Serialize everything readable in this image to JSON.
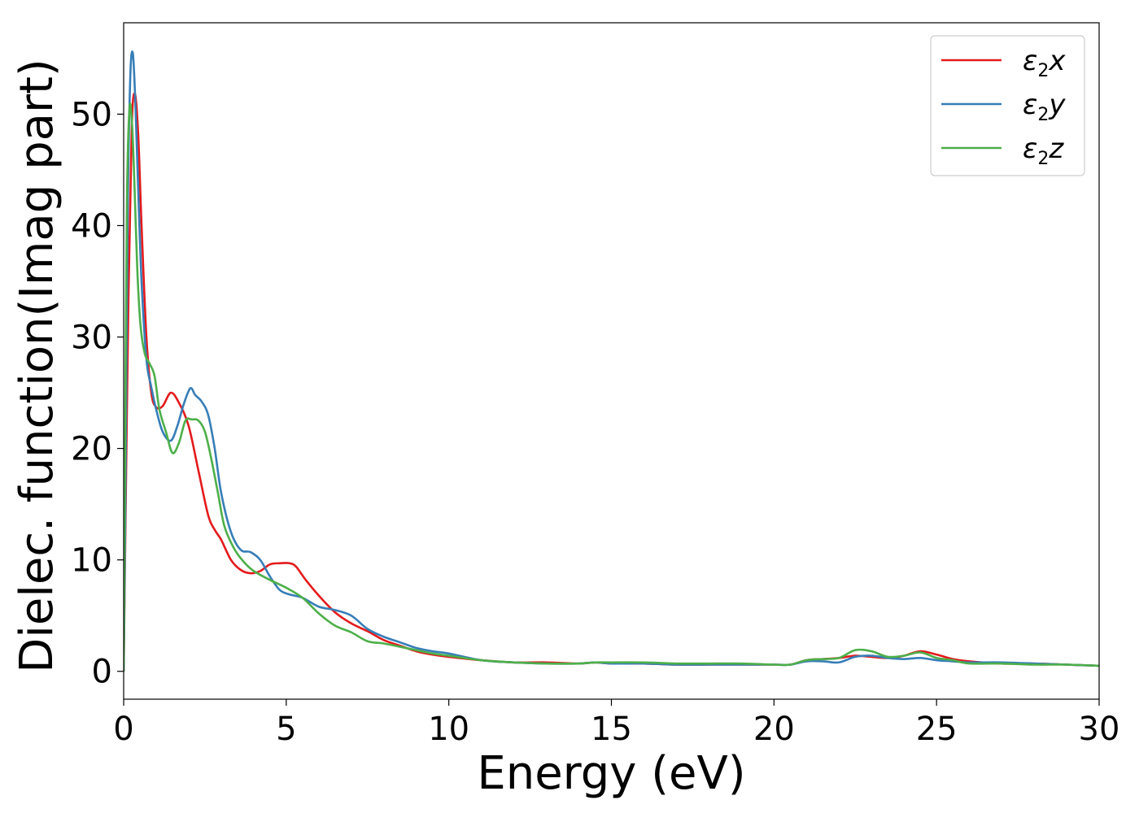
{
  "chart_data": {
    "type": "line",
    "title": "",
    "xlabel": "Energy (eV)",
    "ylabel": "Dielec. function(Imag part)",
    "xlim": [
      0,
      30
    ],
    "ylim": [
      -2.5,
      58.2
    ],
    "xticks": [
      0,
      5,
      10,
      15,
      20,
      25,
      30
    ],
    "yticks": [
      0,
      10,
      20,
      30,
      40,
      50
    ],
    "grid": false,
    "legend_position": "top-right",
    "series": [
      {
        "name_base": "ε",
        "name_sub": "2",
        "name_suffix": "x",
        "color": "#e41a1c",
        "x": [
          0,
          0.05,
          0.15,
          0.25,
          0.35,
          0.45,
          0.55,
          0.7,
          0.85,
          1.0,
          1.2,
          1.45,
          1.7,
          2.0,
          2.3,
          2.6,
          2.8,
          3.0,
          3.3,
          3.6,
          3.9,
          4.2,
          4.5,
          4.8,
          5.1,
          5.3,
          5.6,
          6.0,
          6.5,
          7.0,
          7.5,
          8.0,
          8.5,
          9.0,
          9.5,
          10.0,
          11.0,
          12.0,
          13.0,
          14.0,
          14.5,
          15.0,
          16.0,
          17.0,
          18.0,
          19.0,
          20.0,
          20.5,
          21.0,
          21.5,
          22.0,
          22.5,
          23.0,
          23.5,
          24.0,
          24.5,
          25.0,
          25.5,
          26.0,
          27.0,
          28.0,
          29.0,
          30.0
        ],
        "y": [
          0,
          12,
          34,
          49,
          51.8,
          48,
          40,
          30,
          25,
          23.7,
          23.8,
          25,
          24.1,
          22,
          18,
          14,
          12.7,
          11.8,
          10,
          9.1,
          8.8,
          9.0,
          9.6,
          9.7,
          9.7,
          9.4,
          8.2,
          6.8,
          5.3,
          4.3,
          3.6,
          2.8,
          2.3,
          1.8,
          1.5,
          1.3,
          1.0,
          0.8,
          0.8,
          0.7,
          0.8,
          0.7,
          0.7,
          0.6,
          0.6,
          0.6,
          0.6,
          0.6,
          1.0,
          1.1,
          1.2,
          1.4,
          1.3,
          1.2,
          1.4,
          1.8,
          1.5,
          1.1,
          0.9,
          0.7,
          0.7,
          0.6,
          0.5
        ]
      },
      {
        "name_base": "ε",
        "name_sub": "2",
        "name_suffix": "y",
        "color": "#377eb8",
        "x": [
          0,
          0.05,
          0.12,
          0.2,
          0.28,
          0.36,
          0.45,
          0.55,
          0.7,
          0.85,
          1.0,
          1.2,
          1.45,
          1.65,
          1.85,
          2.05,
          2.2,
          2.4,
          2.6,
          2.8,
          3.0,
          3.3,
          3.6,
          3.9,
          4.2,
          4.5,
          4.8,
          5.1,
          5.5,
          6.0,
          6.5,
          7.0,
          7.5,
          8.0,
          8.5,
          9.0,
          9.5,
          10.0,
          11.0,
          12.0,
          13.0,
          14.0,
          14.5,
          15.0,
          16.0,
          17.0,
          18.0,
          19.0,
          20.0,
          20.5,
          21.0,
          21.5,
          22.0,
          22.5,
          23.0,
          23.5,
          24.0,
          24.5,
          25.0,
          25.5,
          26.0,
          27.0,
          28.0,
          29.0,
          30.0
        ],
        "y": [
          0,
          14,
          40,
          53,
          55.5,
          51,
          43,
          35,
          28,
          25.5,
          23.5,
          21.5,
          20.7,
          22,
          24,
          25.4,
          24.8,
          24.2,
          23,
          20,
          16,
          12.5,
          10.9,
          10.7,
          10.0,
          8.5,
          7.3,
          6.9,
          6.6,
          5.8,
          5.5,
          5.0,
          3.8,
          3.1,
          2.6,
          2.1,
          1.8,
          1.6,
          1.0,
          0.8,
          0.7,
          0.7,
          0.8,
          0.7,
          0.7,
          0.6,
          0.6,
          0.6,
          0.6,
          0.6,
          0.9,
          0.9,
          0.8,
          1.3,
          1.4,
          1.2,
          1.1,
          1.2,
          1.0,
          0.9,
          0.8,
          0.8,
          0.7,
          0.6,
          0.5
        ]
      },
      {
        "name_base": "ε",
        "name_sub": "2",
        "name_suffix": "z",
        "color": "#4daf4a",
        "x": [
          0,
          0.04,
          0.1,
          0.18,
          0.26,
          0.34,
          0.42,
          0.52,
          0.65,
          0.8,
          0.95,
          1.1,
          1.3,
          1.5,
          1.7,
          1.9,
          2.1,
          2.3,
          2.5,
          2.7,
          2.9,
          3.1,
          3.4,
          3.7,
          4.0,
          4.5,
          5.0,
          5.5,
          6.0,
          6.5,
          7.0,
          7.5,
          8.0,
          8.5,
          9.0,
          9.5,
          10.0,
          11.0,
          12.0,
          13.0,
          14.0,
          14.5,
          15.0,
          16.0,
          17.0,
          18.0,
          19.0,
          20.0,
          20.5,
          21.0,
          21.5,
          22.0,
          22.5,
          23.0,
          23.5,
          24.0,
          24.5,
          25.0,
          25.5,
          26.0,
          27.0,
          28.0,
          29.0,
          30.0
        ],
        "y": [
          0,
          18,
          42,
          50.5,
          49,
          43,
          36,
          31,
          28.5,
          27.6,
          26.5,
          23.5,
          21.5,
          19.6,
          20.5,
          22.5,
          22.6,
          22.5,
          21.5,
          19,
          16,
          13,
          11,
          9.8,
          9.0,
          8.2,
          7.5,
          6.6,
          5.2,
          4.1,
          3.5,
          2.7,
          2.5,
          2.2,
          1.9,
          1.6,
          1.4,
          1.0,
          0.8,
          0.7,
          0.7,
          0.8,
          0.8,
          0.8,
          0.7,
          0.7,
          0.7,
          0.6,
          0.6,
          1.0,
          1.1,
          1.2,
          1.9,
          1.8,
          1.3,
          1.4,
          1.7,
          1.2,
          1.0,
          0.7,
          0.7,
          0.6,
          0.6,
          0.5
        ]
      }
    ]
  }
}
